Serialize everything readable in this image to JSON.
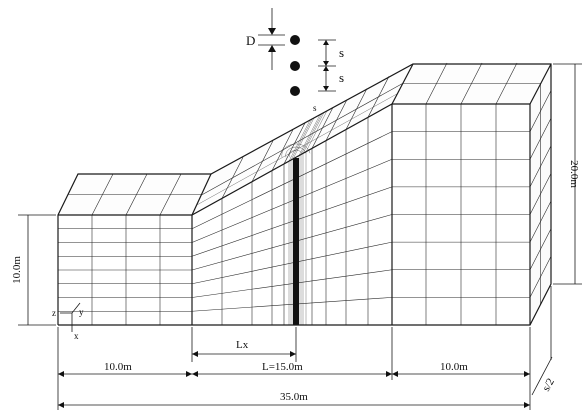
{
  "diagram": {
    "symbols": {
      "diameter": "D",
      "spacing_top": "s",
      "spacing_bottom": "s",
      "half_spacing_near_pile": "s",
      "axis_z": "z",
      "axis_y": "y",
      "axis_x": "x"
    },
    "dimensions": {
      "left_height": "10.0m",
      "right_height": "20.0m",
      "left_width": "10.0m",
      "slope_length": "L=15.0m",
      "right_width": "10.0m",
      "total_width": "35.0m",
      "pile_offset": "Lx",
      "depth": "s/2"
    },
    "colors": {
      "line": "#1a1a1a",
      "background": "#ffffff",
      "pile": "#111111"
    }
  }
}
